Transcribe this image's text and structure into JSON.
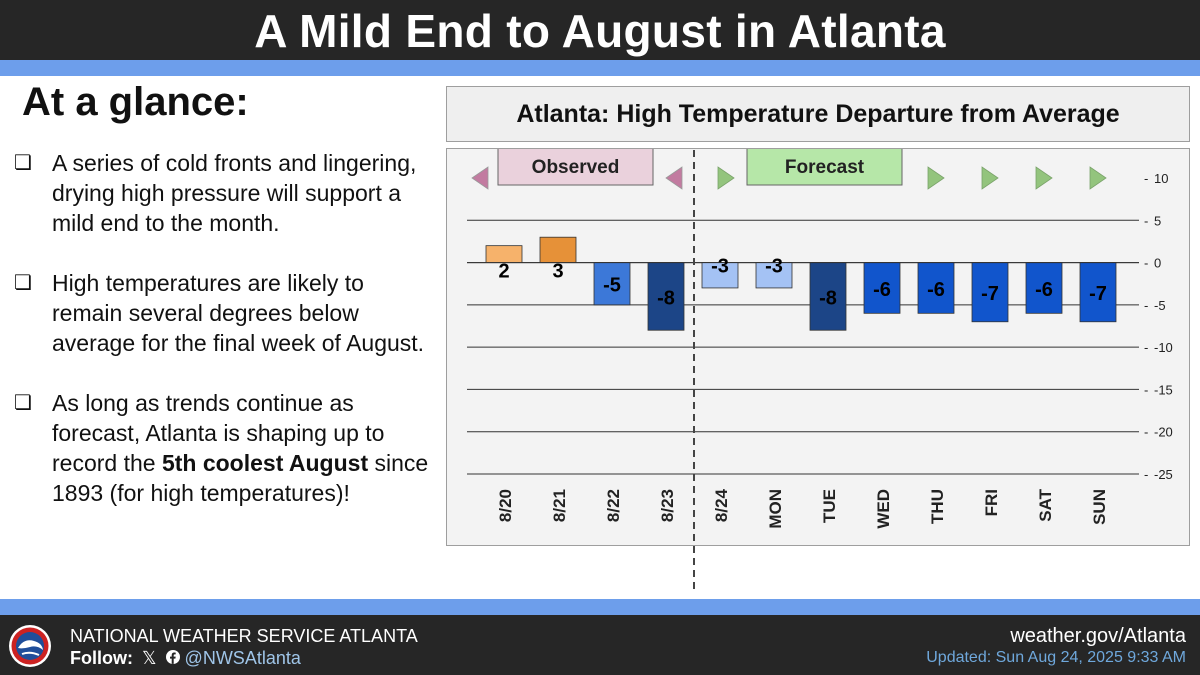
{
  "header": {
    "title": "A Mild End to August in Atlanta"
  },
  "glance": {
    "heading": "At a glance:",
    "bullet_icon": "checkbox-icon",
    "bullets": [
      {
        "parts": [
          "A series of cold fronts and lingering, drying high pressure will support a mild end to the month."
        ]
      },
      {
        "parts": [
          "High temperatures are likely to remain several degrees below average for the final week of August."
        ]
      },
      {
        "parts": [
          "As long as trends continue as forecast, Atlanta is shaping up to record the ",
          "5th coolest August",
          " since 1893 (for high temperatures)!"
        ]
      }
    ]
  },
  "chart_data": {
    "type": "bar",
    "title": "Atlanta: High Temperature Departure from Average",
    "categories": [
      "8/20",
      "8/21",
      "8/22",
      "8/23",
      "8/24",
      "MON",
      "TUE",
      "WED",
      "THU",
      "FRI",
      "SAT",
      "SUN"
    ],
    "values": [
      2,
      3,
      -5,
      -8,
      -3,
      -3,
      -8,
      -6,
      -6,
      -7,
      -6,
      -7
    ],
    "data_labels": [
      "2",
      "3",
      "-5",
      "-8",
      "-3",
      "-3",
      "-8",
      "-6",
      "-6",
      "-7",
      "-6",
      "-7"
    ],
    "ylim": [
      -25,
      10
    ],
    "yticks": [
      10,
      5,
      0,
      -5,
      -10,
      -15,
      -20,
      -25
    ],
    "ytick_labels": [
      "10",
      "5",
      "0",
      "-5",
      "-10",
      "-15",
      "-20",
      "-25"
    ],
    "grid": true,
    "xlabel": "",
    "ylabel": "",
    "bar_colors": [
      "#f6b26b",
      "#e69138",
      "#3c78d8",
      "#1c4587",
      "#a4c2f4",
      "#a4c2f4",
      "#1c4587",
      "#1155cc",
      "#1155cc",
      "#1155cc",
      "#1155cc",
      "#1155cc"
    ],
    "observed_count": 4,
    "segments": {
      "observed": {
        "label": "Observed",
        "color": "#ead1dc",
        "arrow_color": "#c27ba0"
      },
      "forecast": {
        "label": "Forecast",
        "color": "#b6e7a8",
        "arrow_color": "#93c47d"
      }
    },
    "divider": "dashed vertical line between 8/23 and 8/24"
  },
  "footer": {
    "org": "NATIONAL WEATHER SERVICE ATLANTA",
    "follow_label": "Follow:",
    "social_icons": [
      "x-icon",
      "facebook-icon"
    ],
    "handle": "@NWSAtlanta",
    "website": "weather.gov/Atlanta",
    "updated": "Updated: Sun Aug 24, 2025 9:33 AM",
    "logo": "nws-logo-icon"
  },
  "colors": {
    "title_bar": "#262626",
    "accent_band": "#6d9eeb",
    "updated_text": "#6fa8dc",
    "handle_text": "#9fc5e8"
  }
}
